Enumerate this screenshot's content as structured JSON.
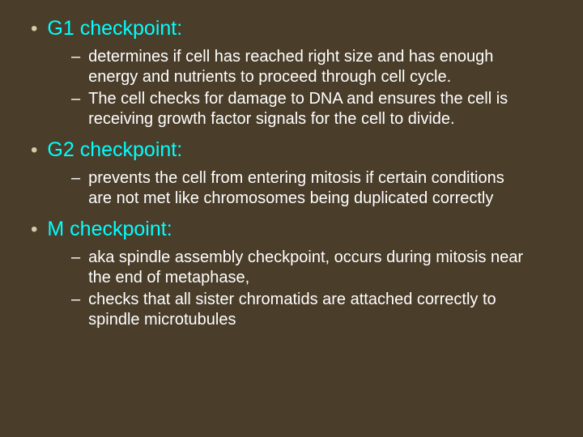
{
  "slide": {
    "background_color": "#4a3d2a",
    "bullet_color": "#d8c9a8",
    "heading_color": "#00ffff",
    "body_color": "#ffffff",
    "heading_fontsize": 25,
    "body_fontsize": 20,
    "sections": [
      {
        "title": "G1 checkpoint:",
        "items": [
          "determines if cell has reached right size and has enough energy and nutrients to proceed through cell cycle.",
          "The cell checks for damage to DNA and ensures the cell is receiving growth factor signals for the cell to divide."
        ]
      },
      {
        "title": "G2 checkpoint:",
        "items": [
          "prevents the cell from entering mitosis if certain conditions are not met like chromosomes being duplicated correctly"
        ]
      },
      {
        "title": "M checkpoint:",
        "items": [
          " aka spindle assembly checkpoint, occurs during mitosis near the end of metaphase,",
          "checks that all sister chromatids are attached correctly to spindle microtubules"
        ]
      }
    ]
  }
}
